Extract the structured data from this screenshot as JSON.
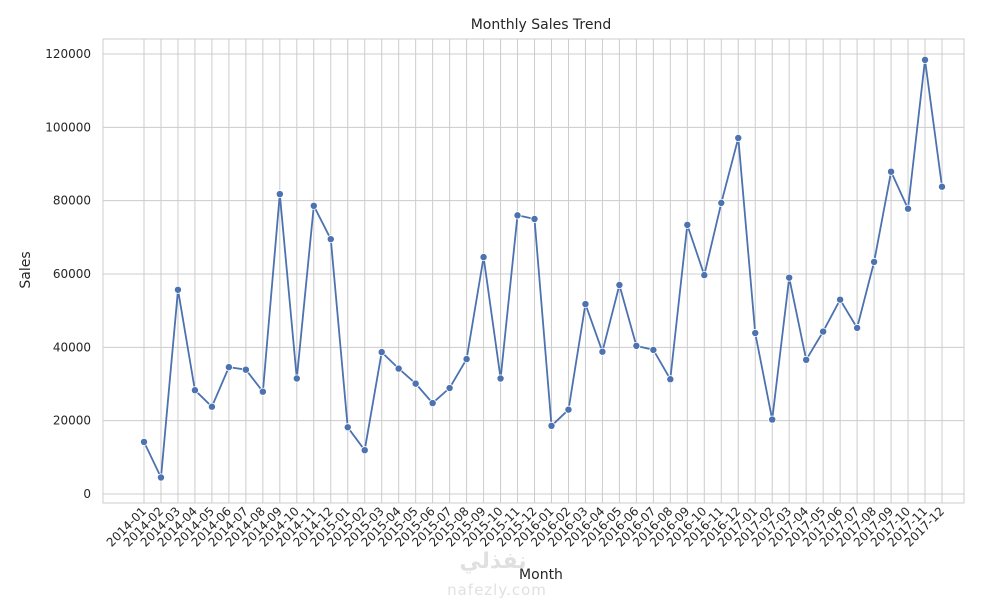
{
  "chart_data": {
    "type": "line",
    "title": "Monthly Sales Trend",
    "xlabel": "Month",
    "ylabel": "Sales",
    "ylim": [
      0,
      124000
    ],
    "yticks": [
      0,
      20000,
      40000,
      60000,
      80000,
      100000,
      120000
    ],
    "grid": true,
    "marker": "circle",
    "color": "#4c72b0",
    "x": [
      "2014-01",
      "2014-02",
      "2014-03",
      "2014-04",
      "2014-05",
      "2014-06",
      "2014-07",
      "2014-08",
      "2014-09",
      "2014-10",
      "2014-11",
      "2014-12",
      "2015-01",
      "2015-02",
      "2015-03",
      "2015-04",
      "2015-05",
      "2015-06",
      "2015-07",
      "2015-08",
      "2015-09",
      "2015-10",
      "2015-11",
      "2015-12",
      "2016-01",
      "2016-02",
      "2016-03",
      "2016-04",
      "2016-05",
      "2016-06",
      "2016-07",
      "2016-08",
      "2016-09",
      "2016-10",
      "2016-11",
      "2016-12",
      "2017-01",
      "2017-02",
      "2017-03",
      "2017-04",
      "2017-05",
      "2017-06",
      "2017-07",
      "2017-08",
      "2017-09",
      "2017-10",
      "2017-11",
      "2017-12"
    ],
    "values": [
      14200,
      4500,
      55700,
      28300,
      23800,
      34600,
      33900,
      27900,
      81800,
      31500,
      78600,
      69500,
      18200,
      11950,
      38700,
      34200,
      30100,
      24800,
      28900,
      36800,
      64600,
      31500,
      76000,
      75000,
      18600,
      23000,
      51800,
      38800,
      57000,
      40400,
      39300,
      31300,
      73400,
      59700,
      79400,
      97100,
      43900,
      20300,
      59000,
      36600,
      44300,
      53000,
      45300,
      63300,
      87900,
      77800,
      118400,
      83800
    ]
  },
  "watermark": {
    "text": "نفذلي",
    "url": "nafezly.com"
  }
}
